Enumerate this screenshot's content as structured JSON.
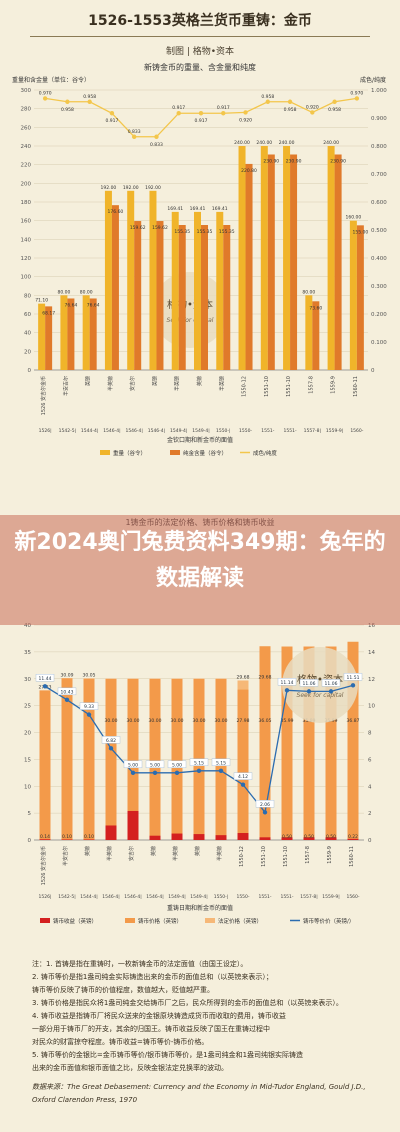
{
  "header": {
    "title": "1526-1553英格兰货币重铸：金币",
    "subtitle": "制图 | 格物•资本"
  },
  "banner": {
    "text": "新2024奥门兔费资料349期：兔年的数据解读"
  },
  "watermark": {
    "name": "格物•资本",
    "tagline": "Seek for capital"
  },
  "chart_data": [
    {
      "type": "bar",
      "title": "新铸金币的重量、含金量和纯度",
      "ylabel_left": "重量和含金量（单位：谷令）",
      "ylabel_right": "成色/纯度",
      "xlabel": "金钦口期和新金币的面值",
      "ylim": [
        0,
        300
      ],
      "ylim_right": [
        0,
        1.0
      ],
      "y_ticks": [
        0,
        20,
        40,
        60,
        80,
        100,
        120,
        140,
        160,
        180,
        200,
        220,
        240,
        260,
        280,
        300
      ],
      "y_right_ticks": [
        "0",
        "0.100",
        "0.200",
        "0.300",
        "0.400",
        "0.500",
        "0.600",
        "0.700",
        "0.800",
        "0.900",
        "1.000"
      ],
      "categories": [
        "1526|",
        "1542-5|",
        "1544-4|",
        "1546-4|",
        "1546-4|",
        "1546-4|",
        "1549-4|",
        "1549-4|",
        "1550-|",
        "1550-",
        "1551-",
        "1551-",
        "1557-8|",
        "1559-9|",
        "1560-"
      ],
      "category_ids": [
        "1",
        "2",
        "3",
        "4",
        "5",
        "6",
        "7",
        "8",
        "9",
        "10",
        "11",
        "12",
        "13",
        "14",
        "15"
      ],
      "category_labels": [
        "1526 安吉尔金币",
        "半安吉尔",
        "英镑",
        "半英镑",
        "安吉尔",
        "英镑",
        "半英镑",
        "英镑",
        "半英镑",
        "1550-12",
        "1551-10",
        "1551-10",
        "1557-8",
        "1559-9",
        "1560-11"
      ],
      "series": [
        {
          "name": "重量（谷令）",
          "color": "#f0b42a",
          "values": [
            71.1,
            80.0,
            80.0,
            192.0,
            192.0,
            192.0,
            169.41,
            169.41,
            169.41,
            240.0,
            240.0,
            240.0,
            80.0,
            240.0,
            160.0
          ]
        },
        {
          "name": "纯金含量（谷令）",
          "color": "#e07a2a",
          "values": [
            68.17,
            76.64,
            76.64,
            176.6,
            159.62,
            159.62,
            155.35,
            155.35,
            155.35,
            220.8,
            230.9,
            230.9,
            73.6,
            230.9,
            155.0
          ]
        },
        {
          "name": "成色/纯度",
          "color": "#f3c64b",
          "values": [
            0.97,
            0.958,
            0.958,
            0.917,
            0.833,
            0.833,
            0.917,
            0.917,
            0.917,
            0.92,
            0.958,
            0.958,
            0.92,
            0.958,
            0.97
          ]
        }
      ],
      "bar_labels_weight": [
        "71.10",
        "80.00",
        "80.00",
        "192.00",
        "192.00",
        "192.00",
        "169.41",
        "169.41",
        "169.41",
        "240.00",
        "240.00",
        "240.00",
        "80.00",
        "240.00",
        "160.00"
      ],
      "bar_labels_gold": [
        "68.17",
        "76.64",
        "76.64",
        "176.60",
        "159.62",
        "159.62",
        "155.35",
        "155.35",
        "155.35",
        "220.80",
        "230.90",
        "230.90",
        "73.60",
        "230.90",
        "155.00"
      ],
      "line_labels": [
        "0.970",
        "0.958",
        "0.958",
        "0.917",
        "0.833",
        "0.833",
        "0.917",
        "0.917",
        "0.917",
        "0.920",
        "0.958",
        "0.958",
        "0.920",
        "0.958",
        "0.970"
      ],
      "legend": [
        "重量（谷令）",
        "纯金含量（谷令）",
        "成色/纯度"
      ]
    },
    {
      "type": "bar",
      "title": "1铸金币的法定价格、铸币价格和铸币收益",
      "xlabel": "重铸日期和新金币的面值",
      "ylim": [
        0,
        40
      ],
      "ylim_right": [
        0,
        16
      ],
      "y_ticks": [
        0,
        5,
        10,
        15,
        20,
        25,
        30,
        35,
        40
      ],
      "y_right_ticks": [
        0,
        2,
        4,
        6,
        8,
        10,
        12,
        14,
        16
      ],
      "categories": [
        "1526|",
        "1542-5|",
        "1544-4|",
        "1546-4|",
        "1546-4|",
        "1546-4|",
        "1549-4|",
        "1549-4|",
        "1550-|",
        "1550-",
        "1551-",
        "1551-",
        "1557-8|",
        "1559-9|",
        "1560-"
      ],
      "series": [
        {
          "name": "铸币收益（英镑）",
          "color": "#d42020",
          "values": [
            0.14,
            0.1,
            0.1,
            2.7,
            5.4,
            0.8,
            1.2,
            1.1,
            0.9,
            1.3,
            0.5,
            0.5,
            0.5,
            0.5,
            0.22
          ]
        },
        {
          "name": "铸币价格（英镑）",
          "color": "#f39a4a",
          "values": [
            27.83,
            30.09,
            30.05,
            30.0,
            30.0,
            30.0,
            30.0,
            30.0,
            30.0,
            27.98,
            36.05,
            35.99,
            35.99,
            35.99,
            36.87
          ]
        },
        {
          "name": "法定价格（英镑）",
          "color": "#f6b878",
          "values": [
            27.83,
            30.09,
            30.05,
            30.0,
            30.0,
            30.0,
            30.0,
            30.0,
            30.0,
            29.68,
            29.68,
            35.99,
            35.99,
            35.99,
            36.87
          ]
        },
        {
          "name": "铸币等价价（英镑/）",
          "color": "#2b6cb0",
          "values": [
            11.44,
            10.43,
            9.33,
            6.82,
            5.0,
            5.0,
            5.0,
            5.15,
            5.15,
            4.12,
            2.06,
            11.14,
            11.06,
            11.06,
            11.51
          ]
        }
      ],
      "bar_top_labels": [
        "27.83",
        "30.09",
        "30.05",
        "",
        "",
        "",
        "",
        "",
        "",
        "29.68",
        "29.68",
        "",
        "",
        "",
        ""
      ],
      "bar_mid_labels": [
        "",
        "",
        "",
        "30.00",
        "30.00",
        "30.00",
        "30.00",
        "30.00",
        "30.00",
        "27.98",
        "36.05",
        "35.99",
        "35.99",
        "35.99",
        "36.87"
      ],
      "bar_bottom_labels": [
        "0.14",
        "0.10",
        "0.10",
        "",
        "",
        "",
        "",
        "",
        "",
        "",
        "",
        "0.50",
        "0.50",
        "0.50",
        "0.22"
      ],
      "line_labels": [
        "11.44",
        "10.43",
        "9.33",
        "6.82",
        "5.00",
        "5.00",
        "5.00",
        "5.15",
        "5.15",
        "4.12",
        "2.06",
        "11.14",
        "11.06",
        "11.06",
        "11.51"
      ],
      "legend": [
        "铸币收益（英镑）",
        "铸币价格（英镑）",
        "法定价格（英镑）",
        "铸币等价价（英镑/）"
      ]
    }
  ],
  "notes": {
    "lines": [
      "注：1. 首铸是指在重铸时，一枚新铸金币的法定面值（由国王设定）。",
      "2. 铸币等价是指1盎司纯金实际铸造出来的金币的面值总和（以英镑来表示）；",
      "铸币等价反映了铸币的价值程度，数值越大，贬值越严重。",
      "3. 铸币价格是指民众将1盎司纯金交给铸币厂之后，民众所得到的金币的面值总和（以英镑来表示）。",
      "4. 铸币收益是指铸币厂将民众送来的金银原块铸造成货币而收取的费用，铸币收益",
      "一部分用于铸币厂的开支，其余的归国王。铸币收益反映了国王在重铸过程中",
      "对民众的财富掠夺程度。铸币收益=铸币等价-铸币价格。",
      "5. 铸币等价的金银比=金币铸币等价/银币铸币等价，是1盎司纯金和1盎司纯银实际铸造",
      "出来的金币面值和银币面值之比，反映金银法定兑换率的波动。"
    ],
    "reference": "数据来源：The Great Debasement: Currency and the Economy in Mid-Tudor England, Gould J.D., Oxford Clarendon Press, 1970"
  }
}
